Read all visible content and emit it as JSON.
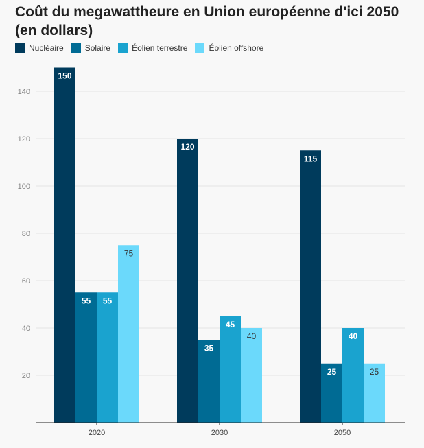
{
  "chart_data": {
    "type": "bar",
    "title": "Coût du megawattheure en Union européenne d'ici 2050 (en dollars)",
    "categories": [
      "2020",
      "2030",
      "2050"
    ],
    "series": [
      {
        "name": "Nucléaire",
        "color": "#003b5c",
        "values": [
          150,
          120,
          115
        ]
      },
      {
        "name": "Solaire",
        "color": "#006b94",
        "values": [
          55,
          35,
          25
        ]
      },
      {
        "name": "Éolien terrestre",
        "color": "#1aa3cf",
        "values": [
          55,
          45,
          40
        ]
      },
      {
        "name": "Éolien offshore",
        "color": "#6bd9fb",
        "values": [
          75,
          40,
          25
        ]
      }
    ],
    "yticks": [
      20,
      40,
      60,
      80,
      100,
      120,
      140
    ],
    "ylim": [
      0,
      150
    ],
    "grid": true,
    "legend_position": "top-left",
    "label_colors": {
      "dark": "#ffffff",
      "light": "#333333"
    }
  }
}
